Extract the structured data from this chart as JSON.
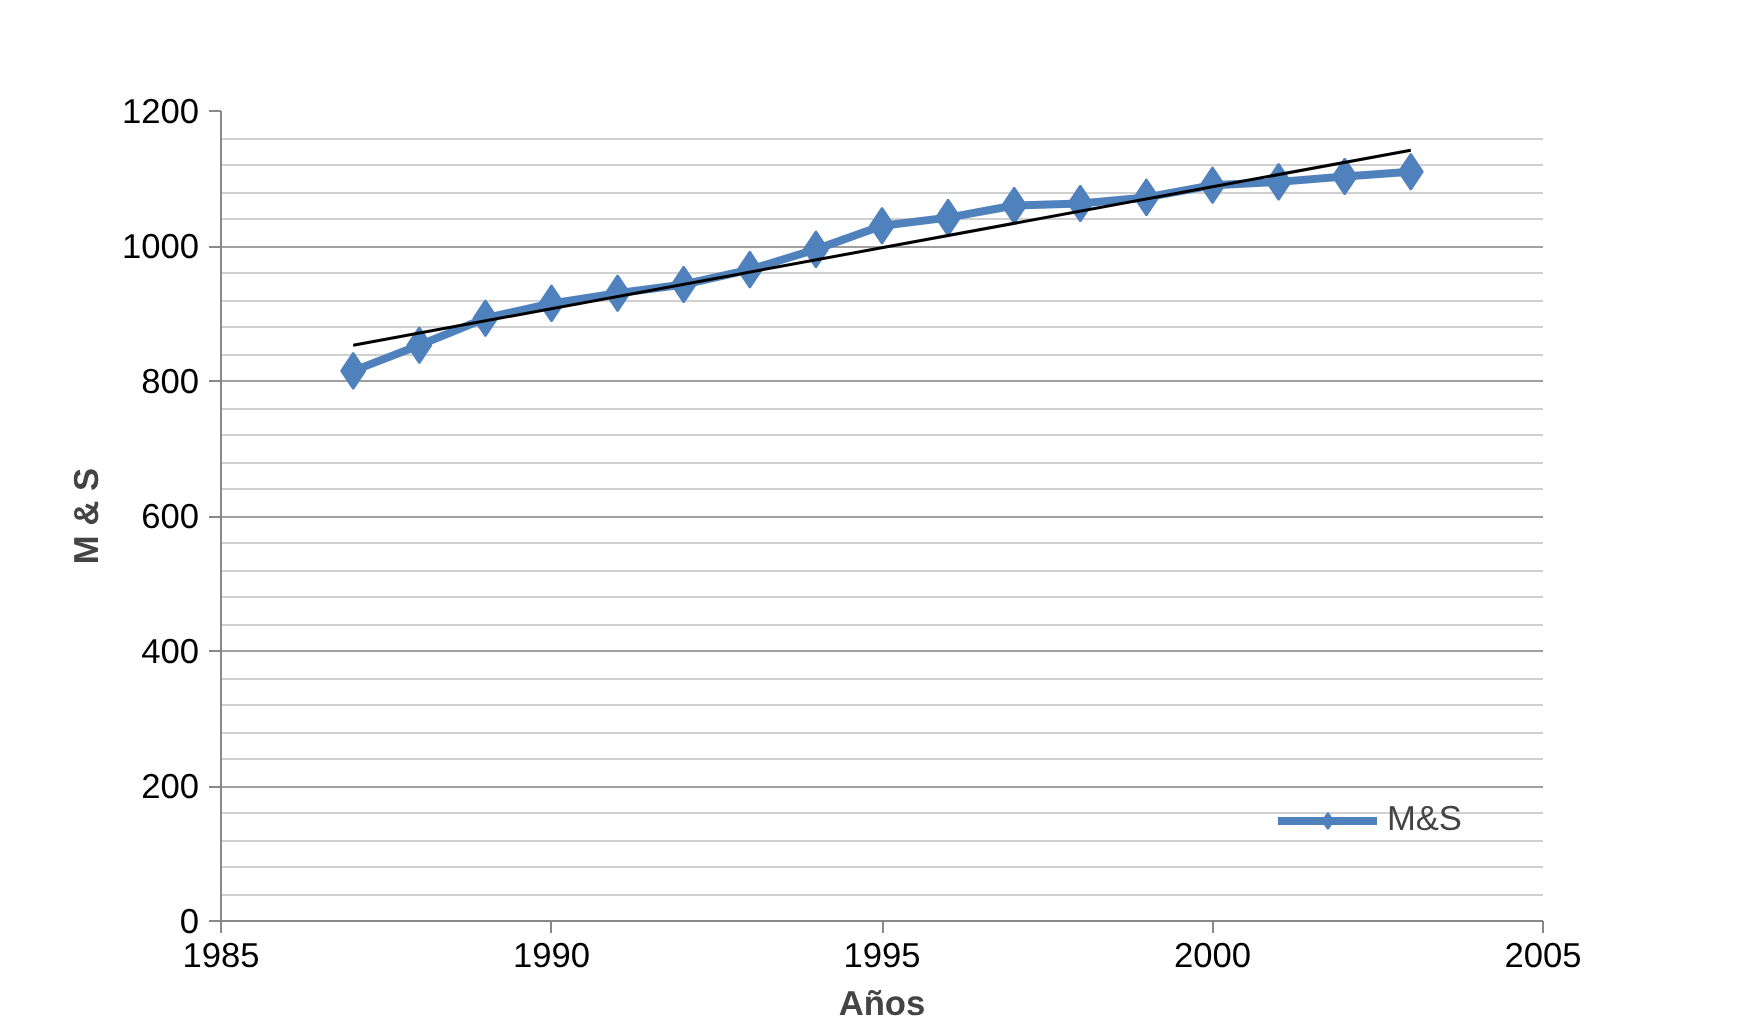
{
  "chart_data": {
    "type": "line",
    "xlabel": "Años",
    "ylabel": "M & S",
    "x": [
      1987,
      1988,
      1989,
      1990,
      1991,
      1992,
      1993,
      1994,
      1995,
      1996,
      1997,
      1998,
      1999,
      2000,
      2001,
      2002,
      2003
    ],
    "series": [
      {
        "name": "M&S",
        "color": "#4f81bd",
        "marker": "diamond",
        "values": [
          815,
          853,
          893,
          915,
          930,
          943,
          965,
          995,
          1030,
          1042,
          1060,
          1063,
          1072,
          1090,
          1095,
          1103,
          1110
        ]
      },
      {
        "type": "line",
        "color": "#000000",
        "marker": "none",
        "x": [
          1987,
          2003
        ],
        "values": [
          853,
          1142
        ]
      }
    ],
    "xlim": [
      1985,
      2005
    ],
    "xticks": [
      1985,
      1990,
      1995,
      2000,
      2005
    ],
    "ylim": [
      0,
      1200
    ],
    "yticks": [
      0,
      200,
      400,
      600,
      800,
      1000,
      1200
    ],
    "grid": "y",
    "legend": "bottom right"
  }
}
